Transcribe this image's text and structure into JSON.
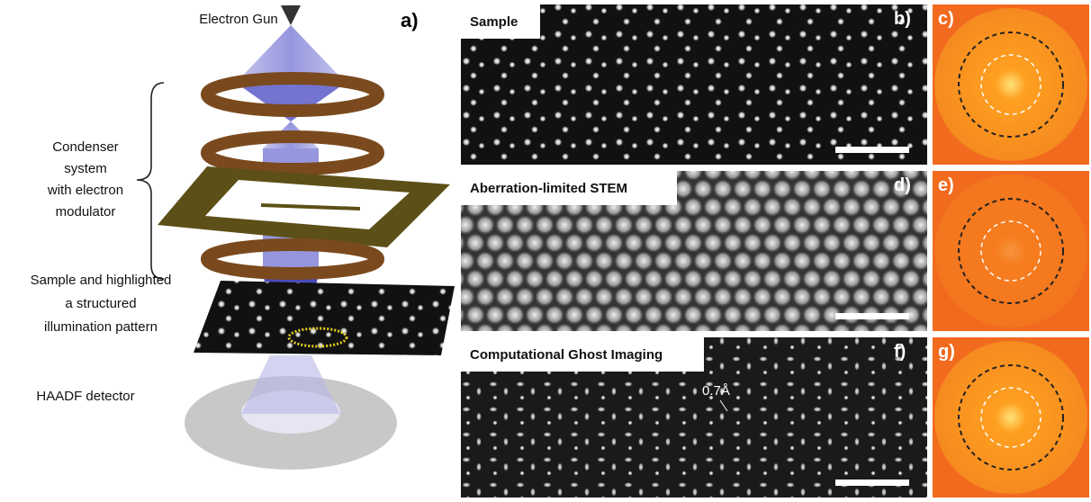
{
  "panel_a": {
    "label": "a)",
    "electron_gun": "Electron Gun",
    "condenser_lines": [
      "Condenser",
      "system",
      "with electron",
      "modulator"
    ],
    "sample_lines": [
      "Sample and highlighted",
      "a structured",
      "illumination pattern"
    ],
    "detector": "HAADF detector"
  },
  "panels": [
    {
      "title": "Sample",
      "label": "b)",
      "fft_label": "c)"
    },
    {
      "title": "Aberration-limited STEM",
      "label": "d)",
      "fft_label": "e)"
    },
    {
      "title": "Computational Ghost Imaging",
      "label": "f)",
      "fft_label": "g)",
      "annotation": "0.7Å"
    }
  ]
}
